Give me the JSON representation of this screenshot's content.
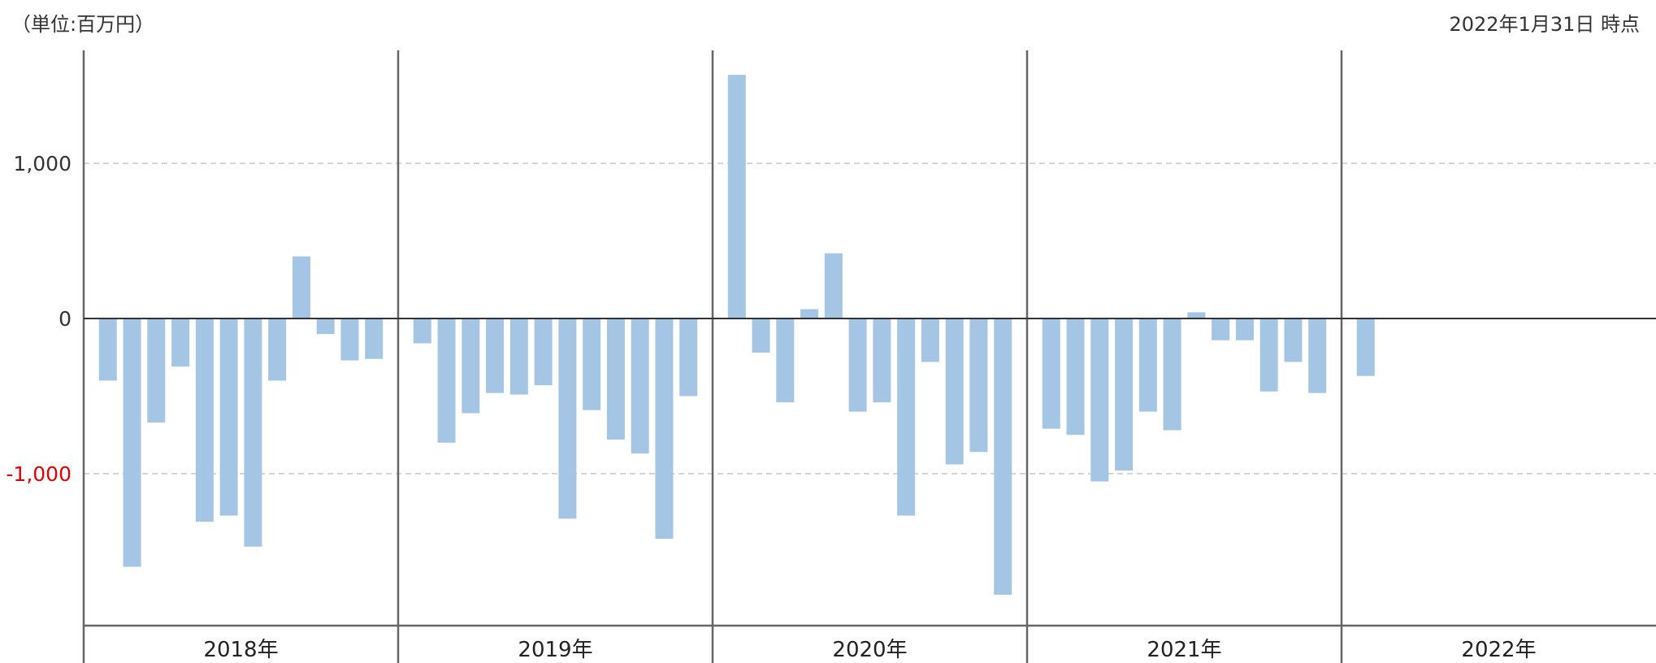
{
  "header": {
    "unit_label": "（単位:百万円）",
    "date_label": "2022年1月31日 時点"
  },
  "colors": {
    "bar": "#a4c5e4",
    "zero_line": "#333333",
    "grid": "#c8c8c8",
    "separator": "#666666",
    "positive_tick": "#333333",
    "negative_tick": "#e00000"
  },
  "chart_data": {
    "type": "bar",
    "title": "",
    "xlabel": "",
    "ylabel": "",
    "ylim": [
      -1950,
      1750
    ],
    "y_ticks": [
      {
        "value": 1000,
        "label": "1,000"
      },
      {
        "value": 0,
        "label": "0"
      },
      {
        "value": -1000,
        "label": "-1,000"
      }
    ],
    "grid": true,
    "years": [
      {
        "label": "2018年",
        "values": [
          -400,
          -1600,
          -670,
          -310,
          -1310,
          -1270,
          -1470,
          -400,
          400,
          -100,
          -270,
          -260
        ]
      },
      {
        "label": "2019年",
        "values": [
          -160,
          -800,
          -610,
          -480,
          -490,
          -430,
          -1290,
          -590,
          -780,
          -870,
          -1420,
          -500
        ]
      },
      {
        "label": "2020年",
        "values": [
          1570,
          -220,
          -540,
          60,
          420,
          -600,
          -540,
          -1270,
          -280,
          -940,
          -860,
          -1780
        ]
      },
      {
        "label": "2021年",
        "values": [
          -710,
          -750,
          -1050,
          -980,
          -600,
          -720,
          40,
          -140,
          -140,
          -470,
          -280,
          -480
        ]
      },
      {
        "label": "2022年",
        "values": [
          -370
        ]
      }
    ]
  }
}
